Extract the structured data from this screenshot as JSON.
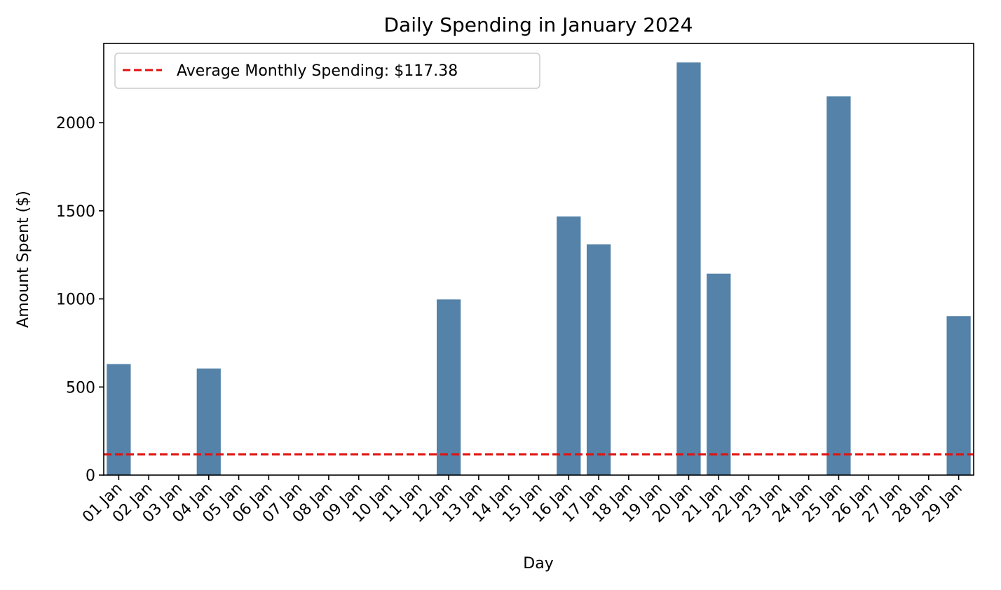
{
  "chart_data": {
    "type": "bar",
    "title": "Daily Spending in January 2024",
    "xlabel": "Day",
    "ylabel": "Amount Spent ($)",
    "ylim": [
      0,
      2450
    ],
    "yticks": [
      0,
      500,
      1000,
      1500,
      2000
    ],
    "categories": [
      "01 Jan",
      "02 Jan",
      "03 Jan",
      "04 Jan",
      "05 Jan",
      "06 Jan",
      "07 Jan",
      "08 Jan",
      "09 Jan",
      "10 Jan",
      "11 Jan",
      "12 Jan",
      "13 Jan",
      "14 Jan",
      "15 Jan",
      "16 Jan",
      "17 Jan",
      "18 Jan",
      "19 Jan",
      "20 Jan",
      "21 Jan",
      "22 Jan",
      "23 Jan",
      "24 Jan",
      "25 Jan",
      "26 Jan",
      "27 Jan",
      "28 Jan",
      "29 Jan"
    ],
    "values": [
      630,
      0,
      0,
      605,
      0,
      0,
      0,
      0,
      0,
      0,
      0,
      997,
      0,
      0,
      0,
      1468,
      1310,
      0,
      0,
      2342,
      1143,
      0,
      0,
      0,
      2150,
      0,
      0,
      0,
      902
    ],
    "bar_color": "#5482a8",
    "reference_line": {
      "label": "Average Monthly Spending: $117.38",
      "value": 117.38,
      "color": "#e0120f",
      "style": "dashed"
    },
    "legend": {
      "position": "top-left",
      "entries": [
        "Average Monthly Spending: $117.38"
      ]
    },
    "grid": false
  }
}
